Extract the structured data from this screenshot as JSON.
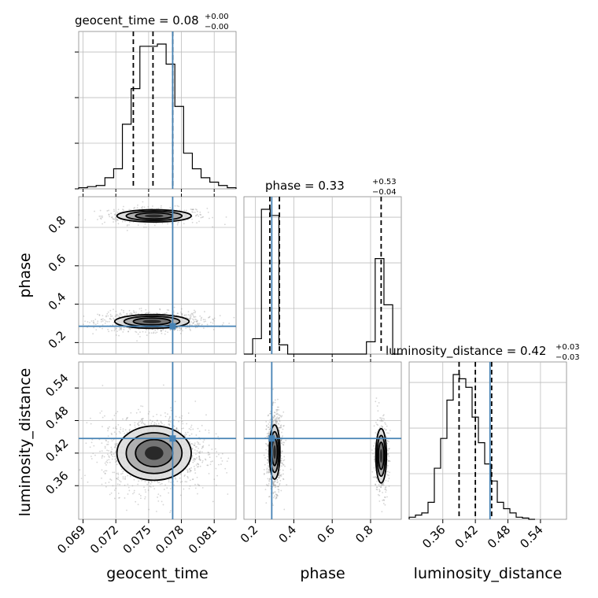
{
  "chart_data": {
    "type": "corner",
    "parameters": [
      "geocent_time",
      "phase",
      "luminosity_distance"
    ],
    "truths": {
      "geocent_time": 0.0772,
      "phase": 0.285,
      "luminosity_distance": 0.447
    },
    "diagonal_titles": [
      {
        "text": "geocent_time = 0.08",
        "sup": "+0.00",
        "sub": "−0.00"
      },
      {
        "text": "phase = 0.33",
        "sup": "+0.53",
        "sub": "−0.04"
      },
      {
        "text": "luminosity_distance = 0.42",
        "sup": "+0.03",
        "sub": "−0.03"
      }
    ],
    "axis_labels": {
      "x": [
        "geocent_time",
        "phase",
        "luminosity_distance"
      ],
      "y": [
        "phase",
        "luminosity_distance"
      ]
    },
    "axes": {
      "geocent_time": {
        "range": [
          0.0686,
          0.083
        ],
        "ticks": [
          "0.069",
          "0.072",
          "0.075",
          "0.078",
          "0.081"
        ]
      },
      "phase": {
        "range": [
          0.14,
          0.96
        ],
        "ticks": [
          "0.2",
          "0.4",
          "0.6",
          "0.8"
        ]
      },
      "luminosity_distance": {
        "range": [
          0.298,
          0.588
        ],
        "ticks": [
          "0.36",
          "0.42",
          "0.48",
          "0.54"
        ]
      }
    },
    "quantiles": {
      "geocent_time": [
        0.0736,
        0.0754,
        0.0772
      ],
      "phase": [
        0.275,
        0.325,
        0.855
      ],
      "luminosity_distance": [
        0.39,
        0.42,
        0.45
      ]
    },
    "histograms": {
      "geocent_time": {
        "bin_start": 0.0686,
        "bin_width": 0.0008,
        "counts": [
          0.5,
          1,
          1.5,
          5,
          9,
          29,
          45,
          64,
          64,
          65,
          56,
          37,
          16,
          9,
          5,
          3,
          1.5,
          0.5
        ]
      },
      "phase": {
        "bin_start": 0.14,
        "bin_width": 0.0456,
        "counts": [
          0,
          2.5,
          23.5,
          22.5,
          1.5,
          0,
          0,
          0,
          0,
          0,
          0,
          0,
          0,
          0,
          2,
          15.5,
          8,
          0
        ]
      },
      "luminosity_distance": {
        "bin_start": 0.298,
        "bin_width": 0.0116,
        "counts": [
          0.5,
          1,
          1.5,
          4,
          12,
          19,
          28,
          34,
          33,
          31,
          24,
          18,
          13,
          9,
          4,
          2.5,
          1.5,
          0.5,
          0.3,
          0
        ]
      }
    },
    "clusters": {
      "geocent_time_phase": [
        {
          "mx": 0.0755,
          "my": 0.86,
          "sx": 0.0017,
          "sy": 0.016,
          "w": 0.3
        },
        {
          "mx": 0.0753,
          "my": 0.31,
          "sx": 0.0017,
          "sy": 0.018,
          "w": 0.7
        }
      ],
      "geocent_time_luminosity_distance": [
        {
          "mx": 0.0755,
          "my": 0.42,
          "sx": 0.0017,
          "sy": 0.025,
          "w": 1.0
        }
      ],
      "phase_luminosity_distance": [
        {
          "mx": 0.3,
          "my": 0.422,
          "sx": 0.014,
          "sy": 0.025,
          "w": 0.7
        },
        {
          "mx": 0.855,
          "my": 0.415,
          "sx": 0.014,
          "sy": 0.025,
          "w": 0.3
        }
      ]
    },
    "contour_levels_sigma": [
      0.5,
      1.0,
      1.5,
      2.0
    ],
    "grid": true,
    "truth_color": "#4682b4",
    "hist_color": "#000000",
    "scatter_color": "#888888"
  }
}
